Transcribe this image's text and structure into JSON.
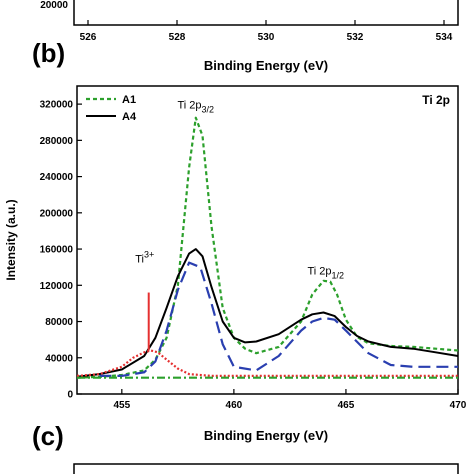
{
  "top_panel": {
    "y_tick_label": "20000",
    "x_ticks": [
      "526",
      "528",
      "530",
      "532",
      "534"
    ],
    "xlabel": "Binding Energy (eV)"
  },
  "panel_b": {
    "letter": "(b)"
  },
  "panel_c": {
    "letter": "(c)"
  },
  "chart_data": {
    "type": "line",
    "title": "Ti 2p",
    "xlabel": "Binding Energy (eV)",
    "ylabel": "Intensity (a.u.)",
    "xlim": [
      453,
      470
    ],
    "ylim": [
      0,
      340000
    ],
    "x_ticks": [
      455,
      460,
      465,
      470
    ],
    "y_ticks": [
      0,
      40000,
      80000,
      120000,
      160000,
      200000,
      240000,
      280000,
      320000
    ],
    "legend_position": "top-left",
    "legend": [
      "A1",
      "A4"
    ],
    "annotations": [
      {
        "text": "Ti 2p3/2",
        "base": "Ti 2p",
        "sub": "3/2",
        "x": 458.3,
        "y": 315000
      },
      {
        "text": "Ti 2p1/2",
        "base": "Ti 2p",
        "sub": "1/2",
        "x": 464.1,
        "y": 132000
      },
      {
        "text": "Ti3+",
        "base": "Ti",
        "sup": "3+",
        "x": 456.2,
        "y": 145000
      }
    ],
    "series": [
      {
        "name": "A1",
        "color": "#2ca02c",
        "style": "dashed",
        "x": [
          453,
          454,
          455,
          456,
          456.5,
          457,
          457.5,
          458,
          458.3,
          458.6,
          459,
          459.5,
          460,
          460.5,
          461,
          462,
          463,
          463.5,
          464,
          464.3,
          464.6,
          465,
          465.5,
          466,
          467,
          468,
          469,
          470
        ],
        "y": [
          18000,
          19000,
          21000,
          26000,
          38000,
          62000,
          120000,
          250000,
          305000,
          285000,
          185000,
          95000,
          62000,
          50000,
          45000,
          52000,
          80000,
          110000,
          125000,
          124000,
          110000,
          82000,
          63000,
          56000,
          53000,
          52000,
          50000,
          48000
        ]
      },
      {
        "name": "A4",
        "color": "#000000",
        "style": "solid",
        "x": [
          453,
          454,
          455,
          456,
          456.5,
          457,
          457.5,
          458,
          458.3,
          458.6,
          459,
          459.5,
          460,
          460.5,
          461,
          462,
          463,
          463.5,
          464,
          464.5,
          465,
          465.5,
          466,
          467,
          468,
          469,
          470
        ],
        "y": [
          19000,
          22000,
          27000,
          42000,
          62000,
          95000,
          130000,
          155000,
          160000,
          152000,
          118000,
          80000,
          62000,
          57000,
          58000,
          66000,
          82000,
          88000,
          90000,
          86000,
          74000,
          64000,
          58000,
          52000,
          50000,
          46000,
          42000
        ]
      },
      {
        "name": "",
        "color": "#2a3fb0",
        "style": "long-dashed",
        "x": [
          454,
          455,
          456,
          456.5,
          457,
          457.5,
          458,
          458.5,
          459,
          459.5,
          460,
          461,
          462,
          463,
          463.5,
          464,
          464.5,
          465,
          466,
          467,
          468,
          469,
          470
        ],
        "y": [
          20000,
          20000,
          24000,
          36000,
          70000,
          115000,
          145000,
          140000,
          100000,
          55000,
          30000,
          26000,
          42000,
          70000,
          80000,
          84000,
          82000,
          70000,
          45000,
          32000,
          30000,
          30000,
          30000
        ]
      },
      {
        "name": "",
        "color": "#e53030",
        "style": "dotted",
        "x": [
          453,
          454,
          455,
          455.5,
          456,
          456.3,
          456.6,
          457,
          457.5,
          458,
          459,
          460,
          462,
          465,
          470
        ],
        "y": [
          20000,
          22000,
          30000,
          40000,
          46000,
          48000,
          46000,
          38000,
          28000,
          22000,
          20000,
          20000,
          20000,
          20000,
          20000
        ]
      },
      {
        "name": "",
        "color": "#2ca02c",
        "style": "dash-dot",
        "x": [
          453,
          470
        ],
        "y": [
          18000,
          18000
        ]
      }
    ]
  }
}
